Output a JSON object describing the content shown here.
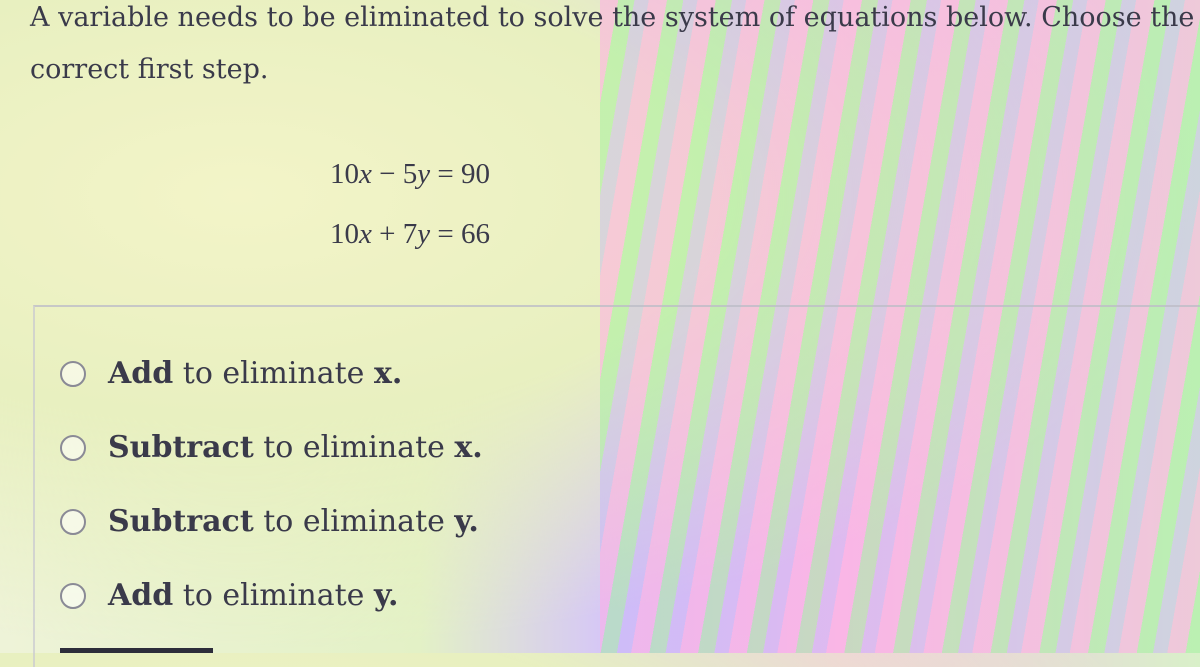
{
  "question": {
    "lines": [
      "A variable needs to be eliminated to solve the system of equations below. Choose the",
      "correct first step."
    ]
  },
  "equations": [
    {
      "parts": [
        "10",
        "x",
        " − 5",
        "y",
        " = 90"
      ]
    },
    {
      "parts": [
        "10",
        "x",
        " + 7",
        "y",
        " = 66"
      ]
    }
  ],
  "options": [
    {
      "verb": "Add",
      "rest": " to eliminate ",
      "variable": "x."
    },
    {
      "verb": "Subtract",
      "rest": " to eliminate ",
      "variable": "x."
    },
    {
      "verb": "Subtract",
      "rest": " to eliminate ",
      "variable": "y."
    },
    {
      "verb": "Add",
      "rest": " to eliminate ",
      "variable": "y."
    }
  ]
}
